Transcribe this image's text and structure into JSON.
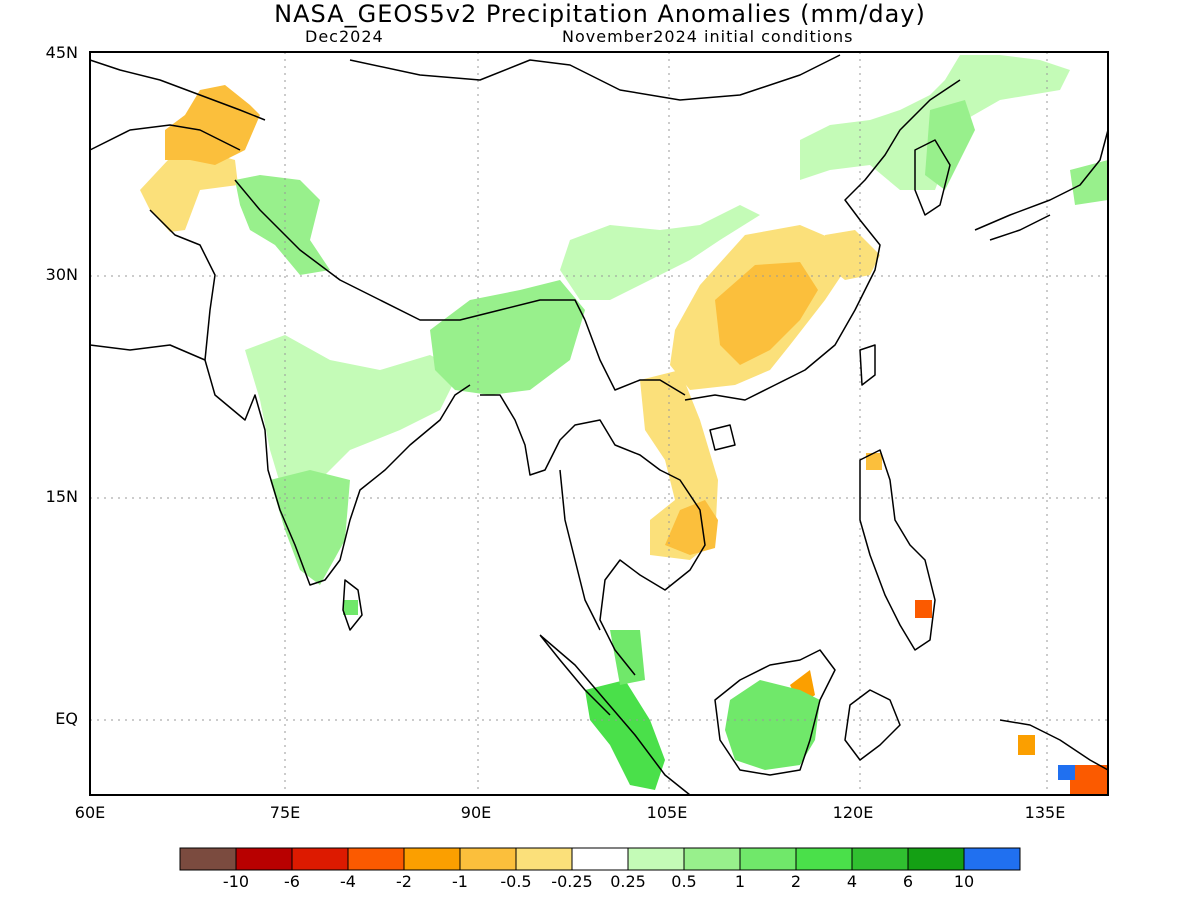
{
  "title": "NASA_GEOS5v2 Precipitation Anomalies (mm/day)",
  "subtitle_left": "Dec2024",
  "subtitle_right": "November2024 initial conditions",
  "lat_labels": [
    "45N",
    "30N",
    "15N",
    "EQ"
  ],
  "lon_labels": [
    "60E",
    "75E",
    "90E",
    "105E",
    "120E",
    "135E"
  ],
  "colorbar": {
    "colors": [
      "#7b4b3f",
      "#b80000",
      "#dd1a00",
      "#fb5a00",
      "#fb9f00",
      "#fbbf3c",
      "#fbe07a",
      "#ffffff",
      "#c4fbb7",
      "#98f08c",
      "#70e86a",
      "#4ae04a",
      "#30c030",
      "#14a014",
      "#2070f0"
    ],
    "labels": [
      "-10",
      "-6",
      "-4",
      "-2",
      "-1",
      "-0.5",
      "-0.25",
      "0.25",
      "0.5",
      "1",
      "2",
      "4",
      "6",
      "10"
    ]
  }
}
